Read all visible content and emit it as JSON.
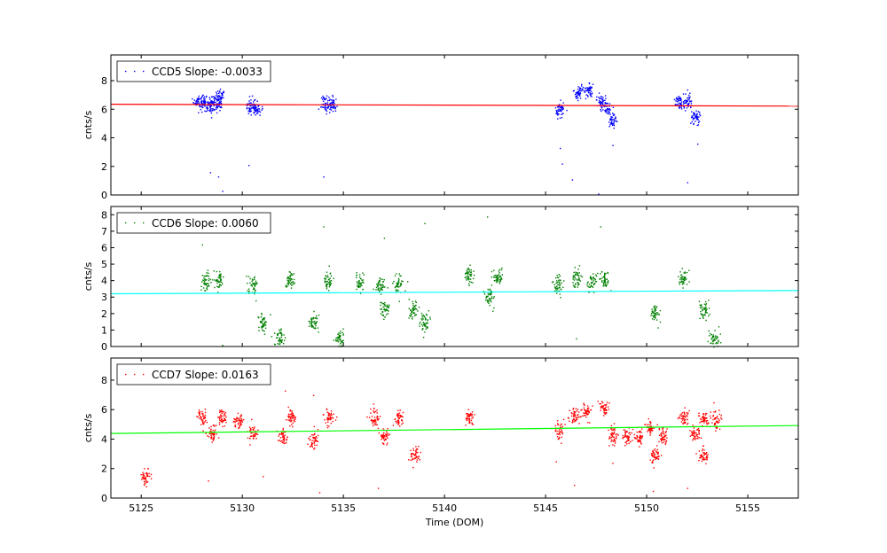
{
  "chart_data": [
    {
      "type": "scatter",
      "title": "",
      "xlabel": "",
      "ylabel": "cnts/s",
      "xlim": [
        5123.5,
        5157.5
      ],
      "ylim": [
        0,
        9.8
      ],
      "yticks": [
        0,
        2,
        4,
        6,
        8
      ],
      "grid": false,
      "legend_position": "top-left",
      "series": [
        {
          "name": "CCD5 Slope: -0.0033",
          "color": "#0000ff",
          "clusters": [
            {
              "x": 5127.8,
              "y": 6.6
            },
            {
              "x": 5128.1,
              "y": 6.5
            },
            {
              "x": 5128.4,
              "y": 6.3
            },
            {
              "x": 5128.7,
              "y": 6.5
            },
            {
              "x": 5128.9,
              "y": 6.8
            },
            {
              "x": 5130.4,
              "y": 6.1
            },
            {
              "x": 5130.7,
              "y": 6.2
            },
            {
              "x": 5134.1,
              "y": 6.4
            },
            {
              "x": 5134.4,
              "y": 6.3
            },
            {
              "x": 5145.7,
              "y": 6.0
            },
            {
              "x": 5146.6,
              "y": 7.2
            },
            {
              "x": 5147.1,
              "y": 7.4
            },
            {
              "x": 5147.7,
              "y": 6.6
            },
            {
              "x": 5148.0,
              "y": 6.2
            },
            {
              "x": 5148.3,
              "y": 5.3
            },
            {
              "x": 5151.6,
              "y": 6.5
            },
            {
              "x": 5152.0,
              "y": 6.5
            },
            {
              "x": 5152.4,
              "y": 5.4
            }
          ],
          "outliers": [
            {
              "x": 5128.4,
              "y": 1.6
            },
            {
              "x": 5128.8,
              "y": 1.3
            },
            {
              "x": 5129.0,
              "y": 0.3
            },
            {
              "x": 5130.3,
              "y": 2.1
            },
            {
              "x": 5134.0,
              "y": 1.3
            },
            {
              "x": 5145.8,
              "y": 2.2
            },
            {
              "x": 5146.3,
              "y": 1.1
            },
            {
              "x": 5147.6,
              "y": 0.1
            },
            {
              "x": 5145.7,
              "y": 3.3
            },
            {
              "x": 5148.3,
              "y": 3.5
            },
            {
              "x": 5152.0,
              "y": 0.9
            },
            {
              "x": 5152.5,
              "y": 3.6
            }
          ]
        }
      ],
      "fit": {
        "color": "#ff0000",
        "y_start": 6.35,
        "y_end": 6.22
      }
    },
    {
      "type": "scatter",
      "title": "",
      "xlabel": "",
      "ylabel": "cnts/s",
      "xlim": [
        5123.5,
        5157.5
      ],
      "ylim": [
        0,
        8.5
      ],
      "yticks": [
        0,
        1,
        2,
        3,
        4,
        5,
        6,
        7,
        8
      ],
      "grid": false,
      "legend_position": "top-left",
      "series": [
        {
          "name": "CCD6 Slope: 0.0060",
          "color": "#008000",
          "clusters": [
            {
              "x": 5128.2,
              "y": 4.0
            },
            {
              "x": 5128.8,
              "y": 4.0
            },
            {
              "x": 5130.5,
              "y": 3.8
            },
            {
              "x": 5131.0,
              "y": 1.5
            },
            {
              "x": 5131.8,
              "y": 0.6
            },
            {
              "x": 5132.3,
              "y": 4.0
            },
            {
              "x": 5133.5,
              "y": 1.5
            },
            {
              "x": 5134.2,
              "y": 4.0
            },
            {
              "x": 5134.8,
              "y": 0.4
            },
            {
              "x": 5135.8,
              "y": 3.9
            },
            {
              "x": 5136.8,
              "y": 3.7
            },
            {
              "x": 5137.0,
              "y": 2.3
            },
            {
              "x": 5137.7,
              "y": 3.8
            },
            {
              "x": 5138.4,
              "y": 2.2
            },
            {
              "x": 5139.0,
              "y": 1.5
            },
            {
              "x": 5141.2,
              "y": 4.4
            },
            {
              "x": 5142.2,
              "y": 3.0
            },
            {
              "x": 5142.6,
              "y": 4.3
            },
            {
              "x": 5145.6,
              "y": 3.8
            },
            {
              "x": 5146.5,
              "y": 4.2
            },
            {
              "x": 5147.3,
              "y": 4.0
            },
            {
              "x": 5147.9,
              "y": 4.1
            },
            {
              "x": 5150.4,
              "y": 2.0
            },
            {
              "x": 5151.8,
              "y": 4.1
            },
            {
              "x": 5152.8,
              "y": 2.2
            },
            {
              "x": 5153.3,
              "y": 0.5
            }
          ],
          "outliers": [
            {
              "x": 5128.0,
              "y": 6.2
            },
            {
              "x": 5134.0,
              "y": 7.3
            },
            {
              "x": 5137.0,
              "y": 6.6
            },
            {
              "x": 5139.0,
              "y": 7.5
            },
            {
              "x": 5142.1,
              "y": 7.9
            },
            {
              "x": 5147.7,
              "y": 7.3
            },
            {
              "x": 5146.5,
              "y": 0.5
            },
            {
              "x": 5129.0,
              "y": 0.1
            }
          ]
        }
      ],
      "fit": {
        "color": "#00ffff",
        "y_start": 3.2,
        "y_end": 3.4
      }
    },
    {
      "type": "scatter",
      "title": "",
      "xlabel": "Time (DOM)",
      "ylabel": "cnts/s",
      "xlim": [
        5123.5,
        5157.5
      ],
      "ylim": [
        0,
        9.5
      ],
      "yticks": [
        0,
        2,
        4,
        6,
        8
      ],
      "xticks": [
        5125,
        5130,
        5135,
        5140,
        5145,
        5150,
        5155
      ],
      "grid": false,
      "legend_position": "top-left",
      "series": [
        {
          "name": "CCD7 Slope: 0.0163",
          "color": "#ff0000",
          "clusters": [
            {
              "x": 5125.2,
              "y": 1.5
            },
            {
              "x": 5128.0,
              "y": 5.5
            },
            {
              "x": 5128.5,
              "y": 4.4
            },
            {
              "x": 5129.0,
              "y": 5.5
            },
            {
              "x": 5129.8,
              "y": 5.3
            },
            {
              "x": 5130.5,
              "y": 4.4
            },
            {
              "x": 5132.0,
              "y": 4.2
            },
            {
              "x": 5132.4,
              "y": 5.5
            },
            {
              "x": 5133.5,
              "y": 4.0
            },
            {
              "x": 5134.3,
              "y": 5.5
            },
            {
              "x": 5136.5,
              "y": 5.5
            },
            {
              "x": 5137.0,
              "y": 4.2
            },
            {
              "x": 5137.7,
              "y": 5.5
            },
            {
              "x": 5138.5,
              "y": 2.9
            },
            {
              "x": 5141.2,
              "y": 5.5
            },
            {
              "x": 5145.6,
              "y": 4.6
            },
            {
              "x": 5146.4,
              "y": 5.6
            },
            {
              "x": 5147.0,
              "y": 5.9
            },
            {
              "x": 5147.9,
              "y": 6.1
            },
            {
              "x": 5148.3,
              "y": 4.3
            },
            {
              "x": 5149.0,
              "y": 4.2
            },
            {
              "x": 5149.6,
              "y": 4.1
            },
            {
              "x": 5150.1,
              "y": 4.8
            },
            {
              "x": 5150.4,
              "y": 2.9
            },
            {
              "x": 5150.8,
              "y": 4.2
            },
            {
              "x": 5151.8,
              "y": 5.5
            },
            {
              "x": 5152.4,
              "y": 4.4
            },
            {
              "x": 5152.8,
              "y": 5.4
            },
            {
              "x": 5153.4,
              "y": 5.3
            },
            {
              "x": 5152.8,
              "y": 2.9
            }
          ],
          "outliers": [
            {
              "x": 5132.1,
              "y": 7.3
            },
            {
              "x": 5133.5,
              "y": 7.0
            },
            {
              "x": 5133.8,
              "y": 0.4
            },
            {
              "x": 5136.7,
              "y": 0.7
            },
            {
              "x": 5145.5,
              "y": 2.5
            },
            {
              "x": 5146.4,
              "y": 0.9
            },
            {
              "x": 5148.3,
              "y": 2.4
            },
            {
              "x": 5150.3,
              "y": 0.5
            },
            {
              "x": 5152.0,
              "y": 0.7
            },
            {
              "x": 5153.3,
              "y": 6.5
            },
            {
              "x": 5128.3,
              "y": 1.2
            },
            {
              "x": 5131.0,
              "y": 1.5
            }
          ]
        }
      ],
      "fit": {
        "color": "#00ff00",
        "y_start": 4.38,
        "y_end": 4.92
      }
    }
  ]
}
